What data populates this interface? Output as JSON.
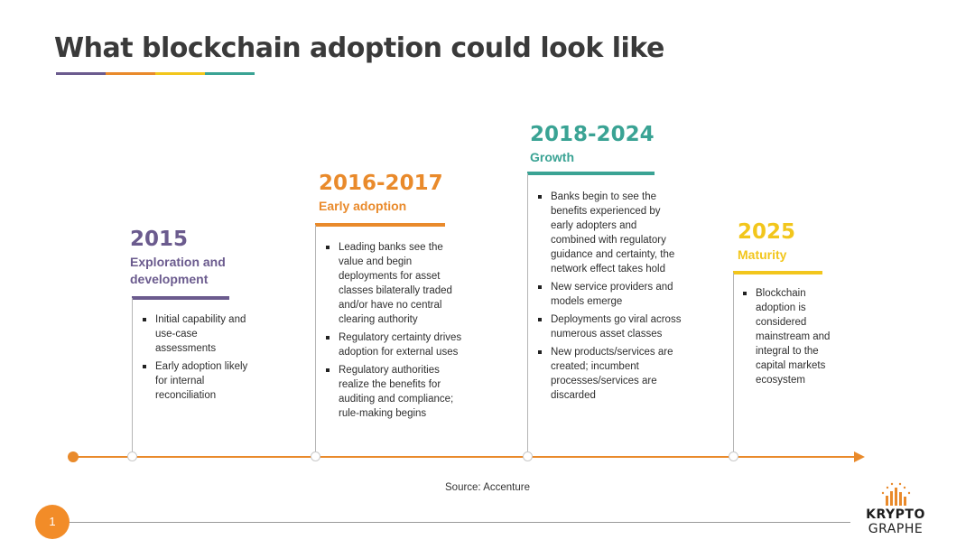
{
  "title": "What blockchain adoption could look like",
  "colors": {
    "purple": "#6b5b8e",
    "orange": "#e98a2b",
    "teal": "#3aa394",
    "yellow": "#f2c61c",
    "timeline": "#e98a2b"
  },
  "stages": [
    {
      "year": "2015",
      "phase": "Exploration and development",
      "bullets": [
        "Initial capability and use-case assessments",
        "Early adoption likely for internal reconciliation"
      ]
    },
    {
      "year": "2016-2017",
      "phase": "Early adoption",
      "bullets": [
        "Leading banks see the value and begin deployments for asset classes bilaterally traded and/or have no central clearing authority",
        "Regulatory certainty drives adoption for external uses",
        "Regulatory authorities realize the benefits for auditing and compliance; rule-making begins"
      ]
    },
    {
      "year": "2018-2024",
      "phase": "Growth",
      "bullets": [
        "Banks begin to see the benefits experienced by early adopters and combined with regulatory guidance and certainty, the network effect takes hold",
        "New service providers and models emerge",
        "Deployments go viral across numerous asset classes",
        "New products/services are created; incumbent processes/services are discarded"
      ]
    },
    {
      "year": "2025",
      "phase": "Maturity",
      "bullets": [
        "Blockchain adoption is considered mainstream and integral to the capital markets ecosystem"
      ]
    }
  ],
  "source": "Source: Accenture",
  "page_number": "1",
  "logo": {
    "top": "KRYPTO",
    "bottom": "GRAPHE",
    "icon": "bar-chart-sparkle-icon"
  }
}
